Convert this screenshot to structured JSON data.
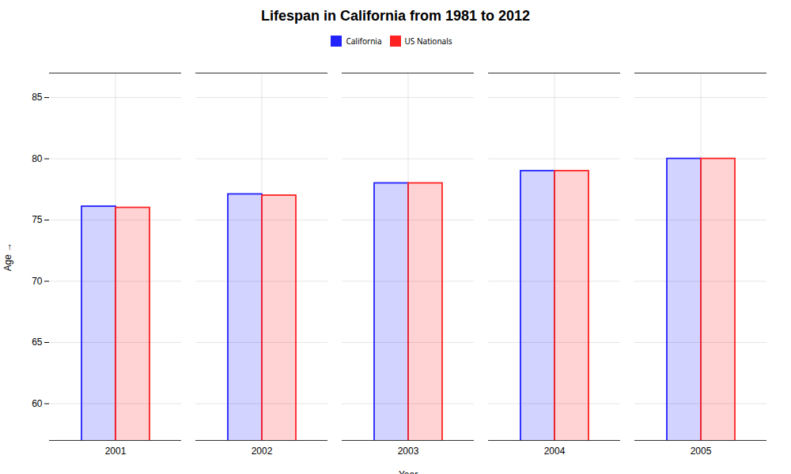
{
  "chart_data": {
    "type": "bar",
    "title": "Lifespan in California from 1981 to 2012",
    "xlabel": "Year",
    "ylabel": "Age",
    "categories": [
      "2001",
      "2002",
      "2003",
      "2004",
      "2005"
    ],
    "series": [
      {
        "name": "California",
        "color": "#2222ff",
        "values": [
          76.1,
          77.1,
          78.0,
          79.0,
          80.0
        ]
      },
      {
        "name": "US Nationals",
        "color": "#ff2222",
        "values": [
          76.0,
          77.0,
          78.0,
          79.0,
          80.0
        ]
      }
    ],
    "ylim": [
      57,
      87
    ],
    "yticks": [
      60,
      65,
      70,
      75,
      80,
      85
    ],
    "grid": true,
    "legend": "top"
  }
}
